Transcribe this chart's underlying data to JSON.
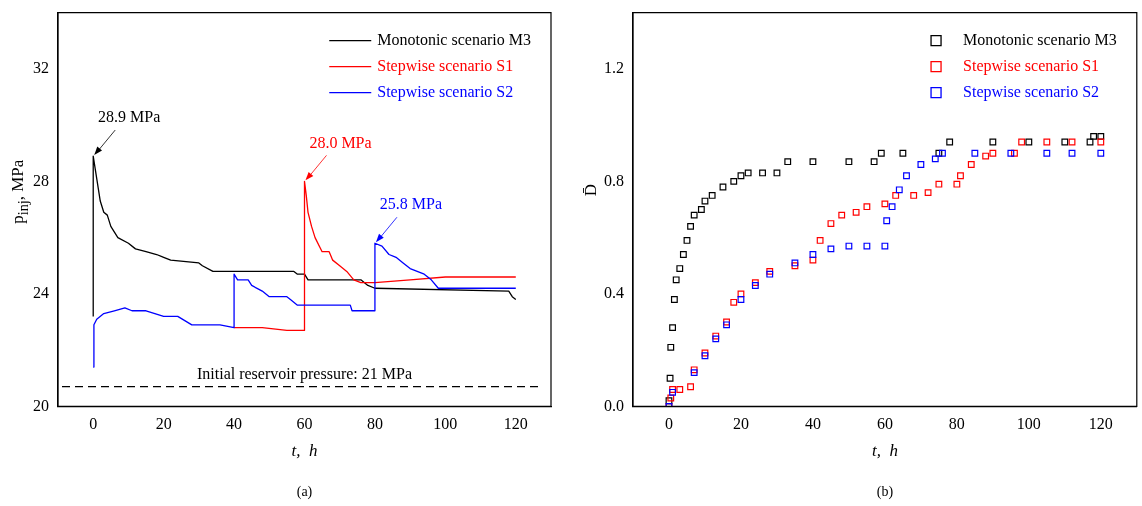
{
  "chart_data": [
    {
      "type": "line",
      "xlabel": "t,  h",
      "ylabel": "p$_{inj}$, MPa",
      "xlim": [
        -10,
        130
      ],
      "ylim": [
        20,
        34
      ],
      "xticks": [
        0,
        20,
        40,
        60,
        80,
        100,
        120
      ],
      "yticks": [
        20,
        24,
        28,
        32
      ],
      "grid": false,
      "legend": "top right",
      "line_style": "solid",
      "marker": "none",
      "series": [
        {
          "name": "Monotonic scenario M3",
          "color": "#000000",
          "x": [
            0,
            0,
            1,
            2,
            3,
            4,
            5,
            7,
            10,
            12,
            15,
            18,
            20,
            22,
            30,
            31,
            34,
            57,
            58,
            60,
            61,
            76,
            78,
            80,
            118,
            119,
            120
          ],
          "values": [
            23.2,
            28.9,
            28.1,
            27.3,
            26.9,
            26.8,
            26.4,
            26.0,
            25.8,
            25.6,
            25.5,
            25.4,
            25.3,
            25.2,
            25.1,
            25.0,
            24.8,
            24.8,
            24.7,
            24.7,
            24.5,
            24.5,
            24.3,
            24.2,
            24.1,
            23.9,
            23.8
          ]
        },
        {
          "name": "Stepwise scenario S1",
          "color": "#ff0000",
          "x": [
            40,
            48,
            55,
            60,
            60,
            60.5,
            61,
            62,
            63,
            65,
            67,
            68,
            70,
            72,
            74,
            76,
            80,
            90,
            100,
            120
          ],
          "values": [
            22.8,
            22.8,
            22.7,
            22.7,
            28.0,
            27.5,
            26.9,
            26.4,
            26.0,
            25.5,
            25.5,
            25.2,
            25.0,
            24.8,
            24.5,
            24.4,
            24.4,
            24.5,
            24.6,
            24.6
          ]
        },
        {
          "name": "Stepwise scenario S2",
          "color": "#0000ff",
          "x": [
            0,
            0.2,
            1,
            3,
            6,
            9,
            11,
            15,
            20,
            24,
            28,
            36,
            40,
            40,
            41,
            44,
            45,
            48,
            50,
            55,
            56,
            58,
            65,
            73,
            73.5,
            80,
            80,
            82,
            84,
            86,
            88,
            90,
            94,
            96,
            98,
            120
          ],
          "values": [
            21.4,
            22.9,
            23.1,
            23.3,
            23.4,
            23.5,
            23.4,
            23.4,
            23.2,
            23.2,
            22.9,
            22.9,
            22.8,
            24.7,
            24.5,
            24.5,
            24.3,
            24.1,
            23.9,
            23.9,
            23.8,
            23.6,
            23.6,
            23.6,
            23.4,
            23.4,
            25.8,
            25.7,
            25.4,
            25.3,
            25.1,
            24.9,
            24.7,
            24.5,
            24.2,
            24.2
          ]
        }
      ],
      "ref_lines": [
        {
          "axis": "y",
          "value": 20.7,
          "label": "Initial reservoir pressure: 21 MPa",
          "color": "#000000",
          "line_style": "dashed"
        }
      ],
      "annotations": [
        {
          "text": "28.9 MPa",
          "x": 0,
          "y": 28.9
        },
        {
          "text": "28.0 MPa",
          "x": 60,
          "y": 28.0
        },
        {
          "text": "25.8 MPa",
          "x": 80,
          "y": 25.8
        },
        "(a)"
      ]
    },
    {
      "type": "scatter",
      "xlabel": "t,  h",
      "ylabel": "D̄",
      "xlim": [
        -10,
        130
      ],
      "ylim": [
        0,
        1.4
      ],
      "xticks": [
        0,
        20,
        40,
        60,
        80,
        100,
        120
      ],
      "yticks": [
        {
          "value": 0,
          "label": "0.0"
        },
        {
          "value": 0.4,
          "label": "0.4"
        },
        {
          "value": 0.8,
          "label": "0.8"
        },
        {
          "value": 1.2,
          "label": "1.2"
        }
      ],
      "grid": false,
      "legend": "top right",
      "marker": "square",
      "series": [
        {
          "name": "Monotonic scenario M3",
          "color": "#000000",
          "x": [
            0,
            0.3,
            0.5,
            1,
            1.5,
            2,
            3,
            4,
            5,
            6,
            7,
            9,
            10,
            12,
            15,
            18,
            20,
            22,
            26,
            30,
            33,
            40,
            50,
            57,
            59,
            65,
            75,
            78,
            90,
            100,
            110,
            117,
            118,
            120
          ],
          "values": [
            0.02,
            0.1,
            0.21,
            0.28,
            0.38,
            0.45,
            0.49,
            0.54,
            0.59,
            0.64,
            0.68,
            0.7,
            0.73,
            0.75,
            0.78,
            0.8,
            0.82,
            0.83,
            0.83,
            0.83,
            0.87,
            0.87,
            0.87,
            0.87,
            0.9,
            0.9,
            0.9,
            0.94,
            0.94,
            0.94,
            0.94,
            0.94,
            0.96,
            0.96
          ]
        },
        {
          "name": "Stepwise scenario S1",
          "color": "#ff0000",
          "x": [
            0,
            0.5,
            1,
            3,
            6,
            7,
            10,
            13,
            16,
            18,
            20,
            24,
            28,
            35,
            40,
            42,
            45,
            48,
            52,
            55,
            60,
            63,
            68,
            72,
            75,
            80,
            81,
            84,
            88,
            90,
            96,
            98,
            105,
            112,
            120
          ],
          "values": [
            0,
            0.03,
            0.06,
            0.06,
            0.07,
            0.13,
            0.19,
            0.25,
            0.3,
            0.37,
            0.4,
            0.44,
            0.48,
            0.5,
            0.52,
            0.59,
            0.65,
            0.68,
            0.69,
            0.71,
            0.72,
            0.75,
            0.75,
            0.76,
            0.79,
            0.79,
            0.82,
            0.86,
            0.89,
            0.9,
            0.9,
            0.94,
            0.94,
            0.94,
            0.94
          ]
        },
        {
          "name": "Stepwise scenario S2",
          "color": "#0000ff",
          "x": [
            0,
            1,
            3,
            7,
            10,
            13,
            16,
            20,
            24,
            28,
            35,
            40,
            45,
            50,
            55,
            60,
            60.5,
            62,
            64,
            66,
            70,
            74,
            76,
            85,
            95,
            105,
            112,
            120
          ],
          "values": [
            0,
            0.05,
            null,
            0.12,
            0.18,
            0.24,
            0.29,
            0.38,
            0.43,
            0.47,
            0.51,
            0.54,
            0.56,
            0.57,
            0.57,
            0.57,
            0.66,
            0.71,
            0.77,
            0.82,
            0.86,
            0.88,
            0.9,
            0.9,
            0.9,
            0.9,
            0.9,
            0.9
          ]
        }
      ],
      "annotations": [
        "(b)"
      ]
    }
  ]
}
